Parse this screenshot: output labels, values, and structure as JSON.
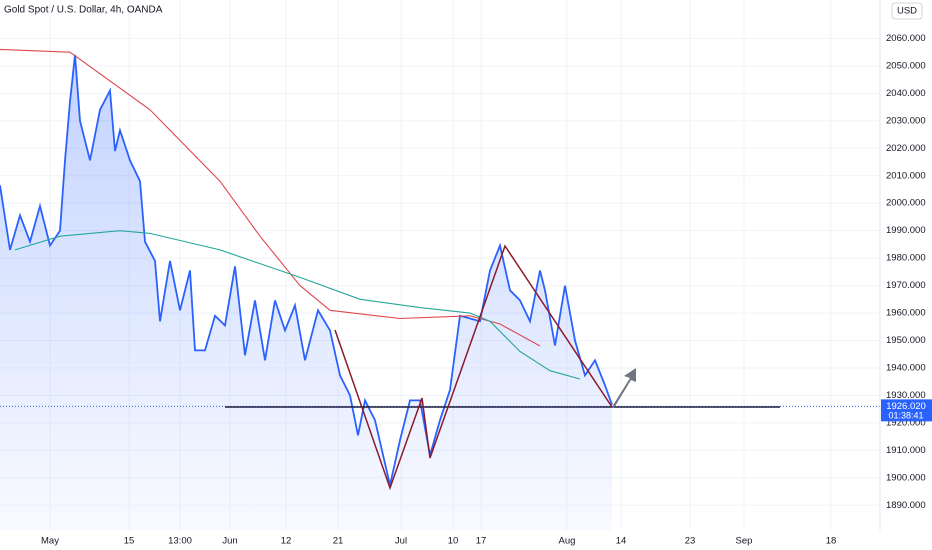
{
  "chart_data": {
    "type": "line",
    "title": "Gold Spot / U.S. Dollar, 4h, OANDA",
    "currency": "USD",
    "xlim": [
      0,
      176
    ],
    "ylim": [
      1881,
      2074
    ],
    "xticks": [
      {
        "value": 10,
        "label": "May"
      },
      {
        "value": 25.8,
        "label": "15"
      },
      {
        "value": 36,
        "label": "13:00"
      },
      {
        "value": 46,
        "label": "Jun"
      },
      {
        "value": 57.2,
        "label": "12"
      },
      {
        "value": 67.6,
        "label": "21"
      },
      {
        "value": 80.2,
        "label": "Jul"
      },
      {
        "value": 90.6,
        "label": "10"
      },
      {
        "value": 96.2,
        "label": "17"
      },
      {
        "value": 113.4,
        "label": "Aug"
      },
      {
        "value": 124.2,
        "label": "14"
      },
      {
        "value": 138,
        "label": "23"
      },
      {
        "value": 148.8,
        "label": "Sep"
      },
      {
        "value": 166.2,
        "label": "18"
      }
    ],
    "yticks": [
      {
        "value": 1890,
        "label": "1890.000"
      },
      {
        "value": 1900,
        "label": "1900.000"
      },
      {
        "value": 1910,
        "label": "1910.000"
      },
      {
        "value": 1920,
        "label": "1920.000"
      },
      {
        "value": 1930,
        "label": "1930.000"
      },
      {
        "value": 1940,
        "label": "1940.000"
      },
      {
        "value": 1950,
        "label": "1950.000"
      },
      {
        "value": 1960,
        "label": "1960.000"
      },
      {
        "value": 1970,
        "label": "1970.000"
      },
      {
        "value": 1980,
        "label": "1980.000"
      },
      {
        "value": 1990,
        "label": "1990.000"
      },
      {
        "value": 2000,
        "label": "2000.000"
      },
      {
        "value": 2010,
        "label": "2010.000"
      },
      {
        "value": 2020,
        "label": "2020.000"
      },
      {
        "value": 2030,
        "label": "2030.000"
      },
      {
        "value": 2040,
        "label": "2040.000"
      },
      {
        "value": 2050,
        "label": "2050.000"
      },
      {
        "value": 2060,
        "label": "2060.000"
      }
    ],
    "last_price": {
      "value": 1926.02,
      "label": "1926.020"
    },
    "countdown": "01:38:41",
    "series": [
      {
        "color": "#2962ff",
        "area": true,
        "x": [
          0,
          2,
          4,
          6,
          8,
          10,
          12,
          13,
          14,
          15,
          16,
          18,
          20,
          22,
          23,
          24,
          26,
          28,
          29,
          31,
          32,
          34,
          36,
          38,
          39,
          41,
          43,
          45,
          47,
          49,
          51,
          53,
          55,
          57,
          59,
          61,
          63.6,
          66,
          68,
          70,
          71.6,
          73,
          75,
          78,
          80,
          82,
          84,
          86,
          88,
          90,
          92,
          94,
          96,
          98,
          100,
          102,
          104,
          106,
          108,
          109,
          111,
          113,
          115,
          117,
          119,
          121,
          122.4
        ],
        "values": [
          2006.5,
          1983,
          1995.6,
          1986,
          1999,
          1984.6,
          1990,
          2015.6,
          2037,
          2054,
          2030,
          2015.6,
          2034,
          2041,
          2019,
          2026.5,
          2015.6,
          2008,
          1986,
          1979,
          1957,
          1979,
          1961,
          1975.5,
          1946.4,
          1946.4,
          1959,
          1955.5,
          1977,
          1944.6,
          1964.6,
          1942.8,
          1964.6,
          1953.7,
          1962.8,
          1942.8,
          1961,
          1953.7,
          1937.3,
          1930,
          1915.5,
          1928.2,
          1921,
          1897.3,
          1913.7,
          1928.2,
          1928.2,
          1908.2,
          1921,
          1932,
          1959,
          1958,
          1957,
          1975.5,
          1984.6,
          1968.3,
          1964.6,
          1957,
          1975.5,
          1968.3,
          1948.2,
          1970,
          1950,
          1937.3,
          1942.8,
          1933.7,
          1926.6
        ]
      },
      {
        "color": "#e0474c",
        "x": [
          0,
          14,
          30,
          44,
          52,
          60,
          66,
          80,
          94,
          100,
          108
        ],
        "values": [
          2056,
          2055,
          2034,
          2008,
          1988,
          1970,
          1961,
          1958,
          1959,
          1956,
          1948
        ]
      },
      {
        "color": "#26a69a",
        "x": [
          3,
          12,
          24,
          30,
          44,
          60,
          72,
          84,
          94,
          98,
          104,
          110,
          116
        ],
        "values": [
          1983,
          1988,
          1990,
          1989,
          1983,
          1973,
          1965,
          1962,
          1960,
          1957,
          1946,
          1939,
          1936
        ]
      }
    ]
  }
}
